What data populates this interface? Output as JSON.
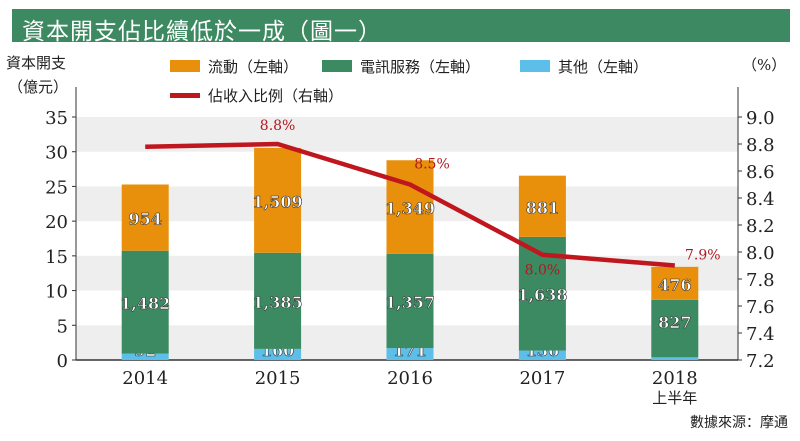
{
  "title": "資本開支佔比續低於一成（圖一）",
  "source": "數據來源：摩通",
  "colors": {
    "current": "#e88f0c",
    "telecom": "#3b8a62",
    "other": "#5bbfe9",
    "ratio": "#c0161e",
    "title_bg": "#3d8a62"
  },
  "chart_data": {
    "type": "bar",
    "stacked": true,
    "title": "資本開支佔比續低於一成（圖一）",
    "ylabel_left": [
      "資本開支",
      "（億元）"
    ],
    "ylabel_right": "（%）",
    "ylim_left": [
      0,
      35
    ],
    "yticks_left": [
      "0",
      "5",
      "10",
      "15",
      "20",
      "25",
      "30",
      "35"
    ],
    "ylim_right": [
      7.2,
      9.0
    ],
    "yticks_right": [
      "7.2",
      "7.4",
      "7.6",
      "7.8",
      "8.0",
      "8.2",
      "8.4",
      "8.6",
      "8.8",
      "9.0"
    ],
    "categories": [
      "2014",
      "2015",
      "2016",
      "2017",
      "2018"
    ],
    "category_sublabels": [
      "",
      "",
      "",
      "",
      "上半年"
    ],
    "legend": [
      "流動（左軸）",
      "電訊服務（左軸）",
      "其他（左軸）",
      "佔收入比例（右軸）"
    ],
    "legend_placement": "top",
    "series": [
      {
        "name": "其他（左軸）",
        "key": "other",
        "values": [
          92,
          160,
          171,
          136,
          39
        ],
        "labels": [
          "92",
          "160",
          "171",
          "136",
          "39"
        ]
      },
      {
        "name": "電訊服務（左軸）",
        "key": "telecom",
        "values": [
          1482,
          1385,
          1357,
          1638,
          827
        ],
        "labels": [
          "1,482",
          "1,385",
          "1,357",
          "1,638",
          "827"
        ]
      },
      {
        "name": "流動（左軸）",
        "key": "current",
        "values": [
          954,
          1509,
          1349,
          881,
          476
        ],
        "labels": [
          "954",
          "1,509",
          "1,349",
          "881",
          "476"
        ]
      }
    ],
    "line": {
      "name": "佔收入比例（右軸）",
      "axis": "right",
      "values": [
        8.78,
        8.8,
        8.5,
        7.98,
        7.9
      ],
      "labels": [
        "",
        "8.8%",
        "8.5%",
        "8.0%",
        "7.9%"
      ]
    }
  }
}
